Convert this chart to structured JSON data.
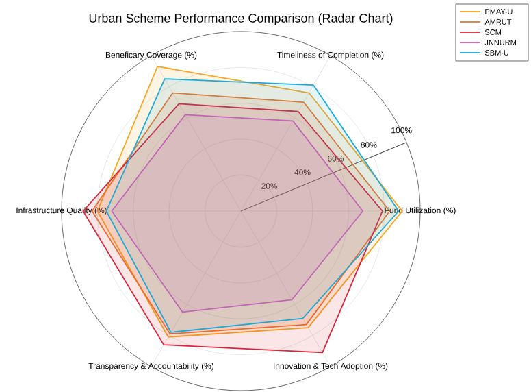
{
  "chart_data": {
    "type": "radar",
    "title": "Urban Scheme Performance Comparison (Radar Chart)",
    "categories": [
      "Timeliness of Completion (%)",
      "Fund Utilization (%)",
      "Innovation & Tech Adoption (%)",
      "Transparency & Accountability (%)",
      "Infrastructure Quality (%)",
      "Beneficary Coverage (%)"
    ],
    "series": [
      {
        "name": "PMAY-U",
        "color": "#f5a623",
        "values": [
          76,
          90,
          75,
          81,
          80,
          93
        ]
      },
      {
        "name": "AMRUT",
        "color": "#e8772e",
        "values": [
          70,
          83,
          73,
          79,
          83,
          76
        ]
      },
      {
        "name": "SCM",
        "color": "#d7263d",
        "values": [
          64,
          79,
          91,
          86,
          88,
          69
        ]
      },
      {
        "name": "JNNURM",
        "color": "#d65db1",
        "values": [
          58,
          68,
          57,
          65,
          72,
          62
        ]
      },
      {
        "name": "SBM-U",
        "color": "#1fa9d6",
        "values": [
          81,
          88,
          69,
          78,
          75,
          85
        ]
      }
    ],
    "ylim": [
      0,
      100
    ],
    "yticks": [
      {
        "value": 20,
        "label": "20%"
      },
      {
        "value": 40,
        "label": "40%"
      },
      {
        "value": 60,
        "label": "60%"
      },
      {
        "value": 80,
        "label": "80%"
      },
      {
        "value": 100,
        "label": "100%"
      }
    ],
    "grid": true,
    "legend": "top right"
  }
}
